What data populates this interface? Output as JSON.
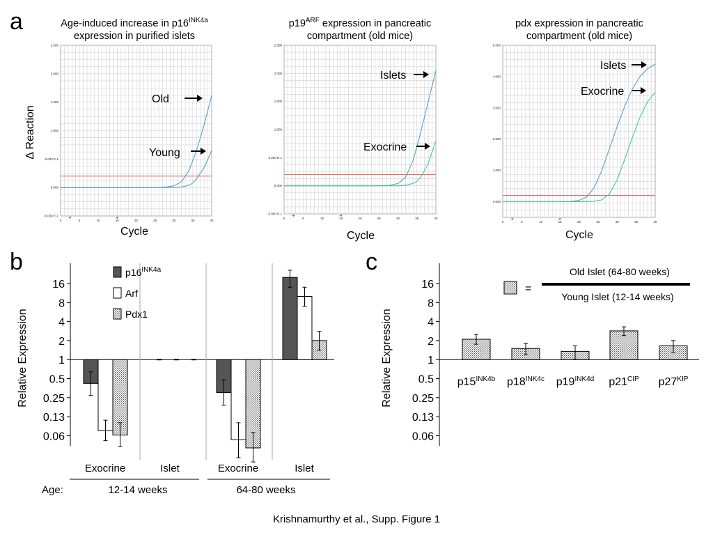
{
  "colors": {
    "grid": "#d0d0d0",
    "threshold": "#f07070",
    "curve_blue": "#5aa0c0",
    "curve_green": "#40c890",
    "marker_red": "#e02020",
    "p16_fill": "#555555",
    "arf_fill": "#ffffff",
    "pdx1_fill": "dotted-gray"
  },
  "panel_a": {
    "letter": "a",
    "ylabel": "Δ Reaction",
    "xlabel": "Cycle",
    "xticks": [
      "0",
      "5",
      "10",
      "15",
      "20",
      "25",
      "30",
      "35",
      "40"
    ]
  },
  "panel_b": {
    "letter": "b",
    "ylabel": "Relative Expression",
    "yticks": [
      "16",
      "8",
      "4",
      "2",
      "1",
      "0.5",
      "0.25",
      "0.13",
      "0.06"
    ],
    "legend": [
      {
        "base": "p16",
        "sup": "INK4a"
      },
      {
        "base": "Arf",
        "sup": ""
      },
      {
        "base": "Pdx1",
        "sup": ""
      }
    ],
    "groups": [
      "Exocrine",
      "Islet",
      "Exocrine",
      "Islet"
    ],
    "age_label": "Age:",
    "ages": [
      "12-14 weeks",
      "64-80 weeks"
    ]
  },
  "panel_c": {
    "letter": "c",
    "ylabel": "Relative Expression",
    "yticks": [
      "16",
      "8",
      "4",
      "2",
      "1",
      "0.5",
      "0.25",
      "0.13",
      "0.06"
    ],
    "equals": "=",
    "numerator": "Old Islet (64-80 weeks)",
    "denominator": "Young Islet (12-14 weeks)",
    "labels": [
      {
        "base": "p15",
        "sup": "INK4b"
      },
      {
        "base": "p18",
        "sup": "INK4c"
      },
      {
        "base": "p19",
        "sup": "INK4d"
      },
      {
        "base": "p21",
        "sup": "CIP"
      },
      {
        "base": "p27",
        "sup": "KIP"
      }
    ]
  },
  "caption": "Krishnamurthy et al., Supp. Figure 1",
  "chart_data": [
    {
      "type": "line",
      "title_line1": "Age-induced increase in p16",
      "title_sup": "INK4a",
      "title_line2": "expression in purified islets",
      "xlabel": "Cycle",
      "ylabel": "Δ Reaction",
      "yticks": [
        "2.500",
        "2.000",
        "1.500",
        "1.000",
        "5.000 E-1",
        "0.000",
        "-5.000 E-1"
      ],
      "xlim": [
        0,
        40
      ],
      "ylim": [
        -0.5,
        2.5
      ],
      "threshold": 0.2,
      "annotations": [
        "Old",
        "Young"
      ],
      "series": [
        {
          "name": "Old",
          "color": "#5aa0c0",
          "x": [
            0,
            5,
            10,
            15,
            20,
            25,
            28,
            30,
            32,
            34,
            36,
            38,
            40
          ],
          "y": [
            0,
            0,
            0,
            0,
            0,
            0,
            0.01,
            0.03,
            0.1,
            0.3,
            0.65,
            1.1,
            1.62
          ]
        },
        {
          "name": "Young",
          "color": "#5aa0c0",
          "x": [
            0,
            5,
            10,
            15,
            20,
            25,
            30,
            32,
            34,
            35,
            36,
            38,
            40
          ],
          "y": [
            0,
            0,
            0,
            0,
            0,
            0,
            0,
            0.01,
            0.04,
            0.08,
            0.15,
            0.35,
            0.65
          ]
        }
      ]
    },
    {
      "type": "line",
      "title_line1": "p19",
      "title_sup": "ARF",
      "title_line1_rest": " expression in pancreatic",
      "title_line2": "compartment (old mice)",
      "xlabel": "Cycle",
      "yticks": [
        "2.500",
        "2.000",
        "1.500",
        "1.000",
        "5.000 E-1",
        "0.000",
        "-5.000 E-1"
      ],
      "xlim": [
        0,
        40
      ],
      "ylim": [
        -0.5,
        2.5
      ],
      "threshold": 0.2,
      "annotations": [
        "Islets",
        "Exocrine"
      ],
      "series": [
        {
          "name": "Islets",
          "color": "#5aa0c0",
          "x": [
            0,
            5,
            10,
            15,
            20,
            25,
            28,
            30,
            32,
            34,
            36,
            38,
            40
          ],
          "y": [
            0,
            0,
            0,
            0,
            0,
            0,
            0.01,
            0.04,
            0.15,
            0.45,
            0.95,
            1.5,
            2.05
          ]
        },
        {
          "name": "Exocrine",
          "color": "#40c890",
          "x": [
            0,
            5,
            10,
            15,
            20,
            25,
            30,
            32,
            34,
            35,
            36,
            38,
            40
          ],
          "y": [
            0,
            0,
            0,
            0,
            0,
            0,
            0,
            0.01,
            0.04,
            0.08,
            0.15,
            0.4,
            0.8
          ]
        }
      ]
    },
    {
      "type": "line",
      "title_line1": "pdx expression in pancreatic",
      "title_sup": "",
      "title_line2": "compartment (old mice)",
      "xlabel": "Cycle",
      "yticks": [
        "5.000",
        "4.000",
        "3.000",
        "2.000",
        "1.000",
        "0.000"
      ],
      "xlim": [
        0,
        40
      ],
      "ylim": [
        -0.5,
        5.0
      ],
      "threshold": 0.2,
      "annotations": [
        "Islets",
        "Exocrine"
      ],
      "series": [
        {
          "name": "Islets",
          "color": "#5aa0c0",
          "x": [
            0,
            5,
            10,
            15,
            18,
            20,
            22,
            24,
            26,
            28,
            30,
            32,
            34,
            36,
            38,
            40
          ],
          "y": [
            0,
            0,
            0,
            0,
            0.01,
            0.04,
            0.15,
            0.45,
            1.0,
            1.7,
            2.4,
            3.05,
            3.6,
            4.0,
            4.25,
            4.4
          ]
        },
        {
          "name": "Exocrine",
          "color": "#40c890",
          "x": [
            0,
            5,
            10,
            15,
            20,
            24,
            26,
            28,
            30,
            32,
            34,
            36,
            38,
            40
          ],
          "y": [
            0,
            0,
            0,
            0,
            0,
            0.01,
            0.06,
            0.25,
            0.7,
            1.35,
            2.05,
            2.7,
            3.2,
            3.5
          ]
        }
      ]
    },
    {
      "type": "bar",
      "ylabel": "Relative Expression",
      "yscale": "log2",
      "yticks": [
        "16",
        "8",
        "4",
        "2",
        "1",
        "0.5",
        "0.25",
        "0.13",
        "0.06"
      ],
      "groups": [
        "Exocrine 12-14 weeks",
        "Islet 12-14 weeks",
        "Exocrine 64-80 weeks",
        "Islet 64-80 weeks"
      ],
      "series": [
        {
          "name": "p16INK4a",
          "values": [
            0.42,
            1.0,
            0.3,
            20.0
          ],
          "err": [
            [
              0.27,
              0.64
            ],
            [
              1.0,
              1.0
            ],
            [
              0.19,
              0.48
            ],
            [
              14.0,
              26.0
            ]
          ]
        },
        {
          "name": "Arf",
          "values": [
            0.075,
            1.0,
            0.054,
            10.0
          ],
          "err": [
            [
              0.052,
              0.11
            ],
            [
              1.0,
              1.0
            ],
            [
              0.028,
              0.1
            ],
            [
              7.0,
              14.0
            ]
          ]
        },
        {
          "name": "Pdx1",
          "values": [
            0.064,
            1.0,
            0.04,
            2.0
          ],
          "err": [
            [
              0.042,
              0.1
            ],
            [
              1.0,
              1.0
            ],
            [
              0.024,
              0.07
            ],
            [
              1.4,
              2.8
            ]
          ]
        }
      ]
    },
    {
      "type": "bar",
      "ylabel": "Relative Expression",
      "yscale": "log2",
      "yticks": [
        "16",
        "8",
        "4",
        "2",
        "1",
        "0.5",
        "0.25",
        "0.13",
        "0.06"
      ],
      "categories": [
        "p15INK4b",
        "p18INK4c",
        "p19INK4d",
        "p21CIP",
        "p27KIP"
      ],
      "values": [
        2.1,
        1.5,
        1.35,
        2.85,
        1.65
      ],
      "err": [
        [
          1.75,
          2.5
        ],
        [
          1.2,
          1.8
        ],
        [
          1.0,
          1.65
        ],
        [
          2.4,
          3.3
        ],
        [
          1.3,
          2.0
        ]
      ]
    }
  ]
}
